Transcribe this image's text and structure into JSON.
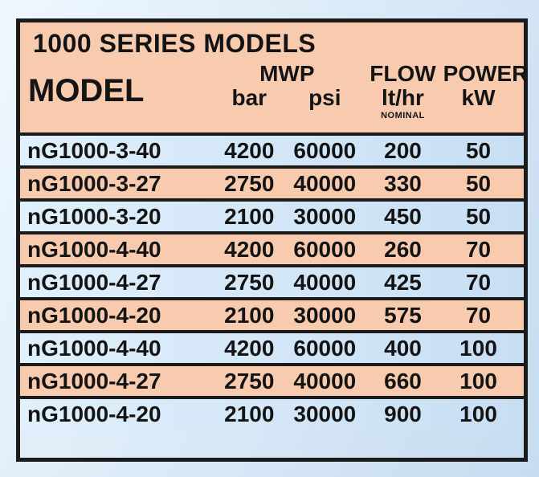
{
  "header": {
    "title": "1000 SERIES MODELS",
    "model_label": "MODEL",
    "mwp_group_label": "MWP",
    "mwp_bar_label": "bar",
    "mwp_psi_label": "psi",
    "flow_label": "FLOW",
    "flow_unit_label": "lt/hr",
    "flow_note_label": "NOMINAL",
    "power_label": "POWER",
    "power_unit_label": "kW"
  },
  "colors": {
    "salmon_row": "#f8cbae",
    "blue_row_left": "#e0f0fc",
    "blue_row_right": "#c7def3",
    "border_black": "#1b1b1b",
    "page_background_light": "#eff7fd",
    "page_background_dark": "#c6dcf1"
  },
  "chart_data": {
    "type": "table",
    "title": "1000 SERIES MODELS",
    "columns": [
      "MODEL",
      "MWP bar",
      "MWP psi",
      "FLOW lt/hr (NOMINAL)",
      "POWER kW"
    ],
    "rows": [
      {
        "model": "nG1000-3-40",
        "mwp_bar": 4200,
        "mwp_psi": 60000,
        "flow_lt_hr": 200,
        "power_kw": 50
      },
      {
        "model": "nG1000-3-27",
        "mwp_bar": 2750,
        "mwp_psi": 40000,
        "flow_lt_hr": 330,
        "power_kw": 50
      },
      {
        "model": "nG1000-3-20",
        "mwp_bar": 2100,
        "mwp_psi": 30000,
        "flow_lt_hr": 450,
        "power_kw": 50
      },
      {
        "model": "nG1000-4-40",
        "mwp_bar": 4200,
        "mwp_psi": 60000,
        "flow_lt_hr": 260,
        "power_kw": 70
      },
      {
        "model": "nG1000-4-27",
        "mwp_bar": 2750,
        "mwp_psi": 40000,
        "flow_lt_hr": 425,
        "power_kw": 70
      },
      {
        "model": "nG1000-4-20",
        "mwp_bar": 2100,
        "mwp_psi": 30000,
        "flow_lt_hr": 575,
        "power_kw": 70
      },
      {
        "model": "nG1000-4-40",
        "mwp_bar": 4200,
        "mwp_psi": 60000,
        "flow_lt_hr": 400,
        "power_kw": 100
      },
      {
        "model": "nG1000-4-27",
        "mwp_bar": 2750,
        "mwp_psi": 40000,
        "flow_lt_hr": 660,
        "power_kw": 100
      },
      {
        "model": "nG1000-4-20",
        "mwp_bar": 2100,
        "mwp_psi": 30000,
        "flow_lt_hr": 900,
        "power_kw": 100
      }
    ]
  }
}
